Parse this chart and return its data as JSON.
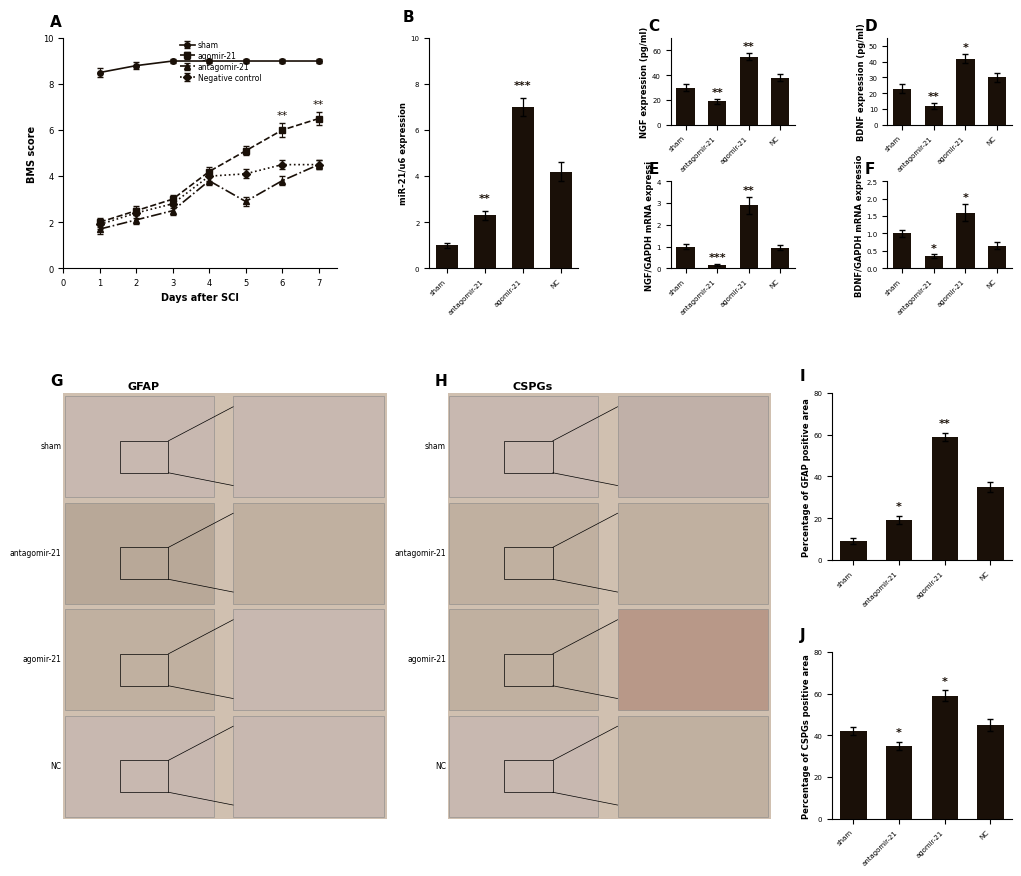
{
  "panel_A": {
    "days": [
      1,
      2,
      3,
      4,
      5,
      6,
      7
    ],
    "sham": {
      "mean": [
        8.5,
        8.8,
        9.0,
        9.0,
        9.0,
        9.0,
        9.0
      ],
      "sem": [
        0.2,
        0.15,
        0.1,
        0.1,
        0.1,
        0.1,
        0.1
      ]
    },
    "agomir": {
      "mean": [
        2.0,
        2.5,
        3.0,
        4.2,
        5.1,
        6.0,
        6.5
      ],
      "sem": [
        0.2,
        0.2,
        0.2,
        0.2,
        0.2,
        0.3,
        0.3
      ]
    },
    "antagomir": {
      "mean": [
        1.7,
        2.1,
        2.5,
        3.8,
        2.9,
        3.8,
        4.5
      ],
      "sem": [
        0.2,
        0.2,
        0.2,
        0.2,
        0.2,
        0.2,
        0.2
      ]
    },
    "NC": {
      "mean": [
        1.9,
        2.4,
        2.8,
        4.0,
        4.1,
        4.5,
        4.5
      ],
      "sem": [
        0.2,
        0.2,
        0.2,
        0.2,
        0.2,
        0.2,
        0.2
      ]
    },
    "xlabel": "Days after SCI",
    "ylabel": "BMS score",
    "ylim": [
      0,
      10
    ],
    "sig_day6": "**",
    "sig_day7": "**",
    "series": [
      {
        "label": "sham",
        "key": "sham",
        "marker": "o",
        "ls": "-"
      },
      {
        "label": "agomir-21",
        "key": "agomir",
        "marker": "s",
        "ls": "--"
      },
      {
        "label": "antagomir-21",
        "key": "antagomir",
        "marker": "^",
        "ls": "-."
      },
      {
        "label": "Negative control",
        "key": "NC",
        "marker": "D",
        "ls": ":"
      }
    ]
  },
  "panel_B": {
    "categories": [
      "sham",
      "antagomir-21",
      "agomir-21",
      "NC"
    ],
    "values": [
      1.0,
      2.3,
      7.0,
      4.2
    ],
    "sem": [
      0.1,
      0.2,
      0.4,
      0.4
    ],
    "ylabel": "miR-21/u6 expression",
    "ylim": [
      0,
      10
    ],
    "yticks": [
      0,
      2,
      4,
      6,
      8,
      10
    ],
    "sig": [
      "",
      "**",
      "***",
      ""
    ]
  },
  "panel_C": {
    "categories": [
      "sham",
      "antagomir-21",
      "agomir-21",
      "NC"
    ],
    "values": [
      30,
      19,
      55,
      38
    ],
    "sem": [
      3,
      2,
      3,
      3
    ],
    "ylabel": "NGF expression (pg/ml)",
    "ylim": [
      0,
      70
    ],
    "yticks": [
      0,
      20,
      40,
      60
    ],
    "sig": [
      "",
      "**",
      "**",
      ""
    ]
  },
  "panel_D": {
    "categories": [
      "sham",
      "antagomir-21",
      "agomir-21",
      "NC"
    ],
    "values": [
      23,
      12,
      42,
      30
    ],
    "sem": [
      3,
      2,
      3,
      3
    ],
    "ylabel": "BDNF expression (pg/ml)",
    "ylim": [
      0,
      55
    ],
    "yticks": [
      0,
      10,
      20,
      30,
      40,
      50
    ],
    "sig": [
      "",
      "**",
      "*",
      ""
    ]
  },
  "panel_E": {
    "categories": [
      "sham",
      "antagomir-21",
      "agomir-21",
      "NC"
    ],
    "values": [
      1.0,
      0.15,
      2.9,
      0.95
    ],
    "sem": [
      0.12,
      0.05,
      0.4,
      0.1
    ],
    "ylabel": "NGF/GAPDH mRNA expressi",
    "ylim": [
      0,
      4
    ],
    "yticks": [
      0,
      1,
      2,
      3,
      4
    ],
    "sig": [
      "",
      "***",
      "**",
      ""
    ]
  },
  "panel_F": {
    "categories": [
      "sham",
      "antagomir-21",
      "agomir-21",
      "NC"
    ],
    "values": [
      1.0,
      0.35,
      1.6,
      0.65
    ],
    "sem": [
      0.1,
      0.05,
      0.25,
      0.1
    ],
    "ylabel": "BDNF/GAPDH mRNA expressio",
    "ylim": [
      0,
      2.5
    ],
    "yticks": [
      0.0,
      0.5,
      1.0,
      1.5,
      2.0,
      2.5
    ],
    "sig": [
      "",
      "*",
      "*",
      ""
    ]
  },
  "panel_I": {
    "categories": [
      "sham",
      "antagomir-21",
      "agomir-21",
      "NC"
    ],
    "values": [
      9,
      19,
      59,
      35
    ],
    "sem": [
      1.5,
      2,
      2,
      2.5
    ],
    "ylabel": "Percentage of GFAP positive area",
    "ylim": [
      0,
      80
    ],
    "yticks": [
      0,
      20,
      40,
      60,
      80
    ],
    "sig": [
      "",
      "*",
      "**",
      ""
    ]
  },
  "panel_J": {
    "categories": [
      "sham",
      "antagomir-21",
      "agomir-21",
      "NC"
    ],
    "values": [
      42,
      35,
      59,
      45
    ],
    "sem": [
      2,
      2,
      2.5,
      3
    ],
    "ylabel": "Percentage of CSPGs positive area",
    "ylim": [
      0,
      80
    ],
    "yticks": [
      0,
      20,
      40,
      60,
      80
    ],
    "sig": [
      "",
      "*",
      "*",
      ""
    ]
  },
  "bar_color": "#1a1008",
  "font_size_label": 7,
  "font_size_tick": 6,
  "font_size_panel": 11,
  "font_size_sig": 8,
  "img_row_labels": [
    "sham",
    "antagomir-21",
    "agomir-21",
    "NC"
  ],
  "img_colors_G": [
    [
      "#c8b8b0",
      "#c8b8b0"
    ],
    [
      "#b8a898",
      "#c0b0a0"
    ],
    [
      "#c0b0a0",
      "#c8b8b0"
    ],
    [
      "#c8b8b0",
      "#c8b8b0"
    ]
  ],
  "img_colors_H": [
    [
      "#c8b8b0",
      "#c0b0a8"
    ],
    [
      "#c0b0a0",
      "#c0b0a0"
    ],
    [
      "#c0b0a0",
      "#b89888"
    ],
    [
      "#c8b8b0",
      "#c0b0a0"
    ]
  ]
}
